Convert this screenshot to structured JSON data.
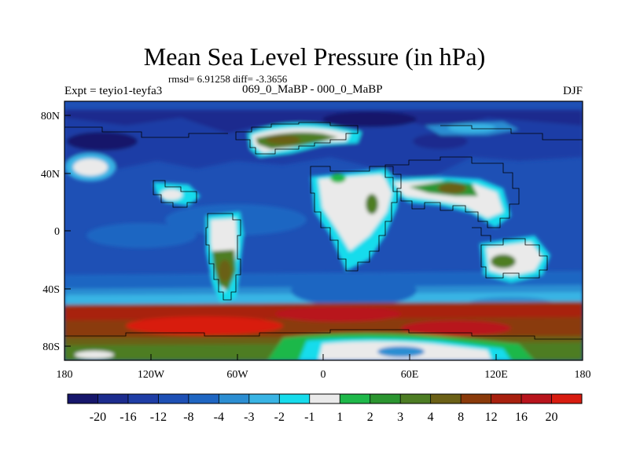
{
  "title": "Mean Sea Level Pressure (in hPa)",
  "stats_line": "rmsd= 6.91258 diff= -3.3656",
  "left_label": "Expt = teyio1-teyfa3",
  "center_label": "069_0_MaBP - 000_0_MaBP",
  "right_label": "DJF",
  "map": {
    "lon_ticks": [
      "180",
      "120W",
      "60W",
      "0",
      "60E",
      "120E",
      "180"
    ],
    "lat_ticks": [
      "80N",
      "40N",
      "0",
      "40S",
      "80S"
    ]
  },
  "colorbar": {
    "labels": [
      "-20",
      "-16",
      "-12",
      "-8",
      "-4",
      "-3",
      "-2",
      "-1",
      "1",
      "2",
      "3",
      "4",
      "8",
      "12",
      "16",
      "20"
    ],
    "colors": [
      "#16166b",
      "#1c2c8e",
      "#1f3ea6",
      "#1e50b5",
      "#1f66c2",
      "#2c8ed2",
      "#39b4e4",
      "#17dcec",
      "#eaeaea",
      "#1fb84a",
      "#2b9530",
      "#4d7d24",
      "#6b6016",
      "#8a3a0a",
      "#a8200e",
      "#b8141c",
      "#d81c10"
    ]
  }
}
